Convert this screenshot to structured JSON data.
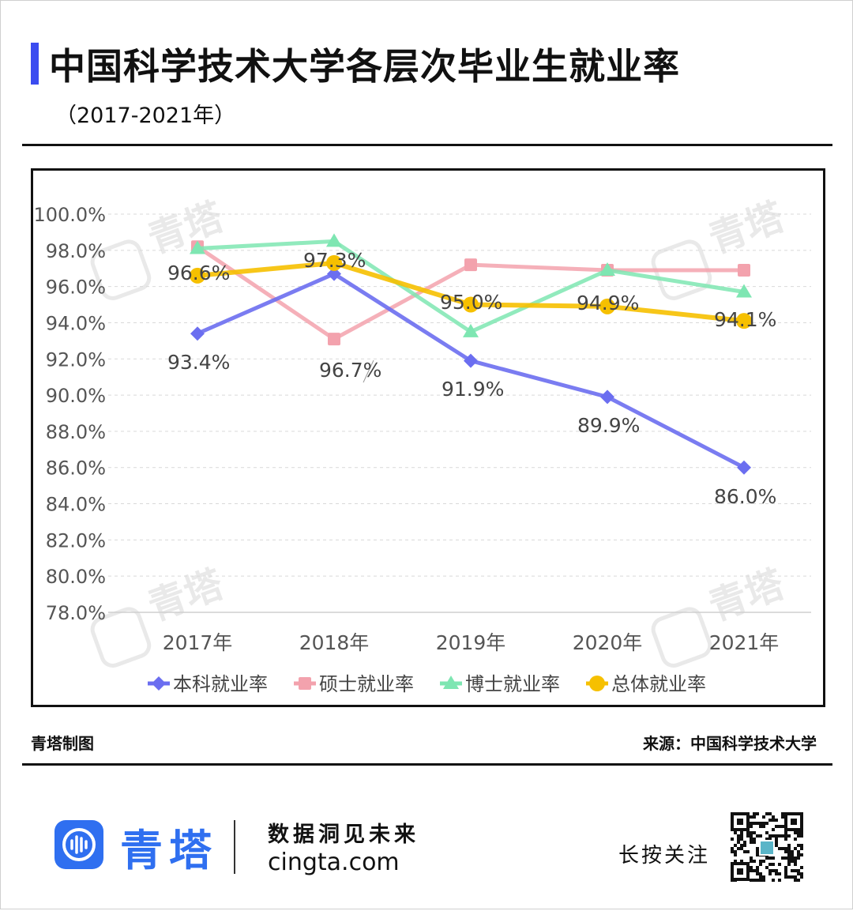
{
  "header": {
    "title": "中国科学技术大学各层次毕业生就业率",
    "subtitle": "（2017-2021年）"
  },
  "watermark": {
    "text": "青塔",
    "icon": "qingta-logo-icon"
  },
  "chart_data": {
    "type": "line",
    "categories": [
      "2017年",
      "2018年",
      "2019年",
      "2020年",
      "2021年"
    ],
    "y_ticks": [
      "100.0%",
      "98.0%",
      "96.0%",
      "94.0%",
      "92.0%",
      "90.0%",
      "88.0%",
      "86.0%",
      "84.0%",
      "82.0%",
      "80.0%",
      "78.0%"
    ],
    "ylim": [
      78,
      100
    ],
    "grid": true,
    "legend_position": "bottom",
    "series": [
      {
        "name": "本科就业率",
        "values": [
          93.4,
          96.7,
          91.9,
          89.9,
          86.0
        ],
        "labels": [
          "93.4%",
          "96.7%",
          "91.9%",
          "89.9%",
          "86.0%"
        ],
        "color": "#6b6ef0",
        "marker": "diamond"
      },
      {
        "name": "硕士就业率",
        "values": [
          98.2,
          93.1,
          97.2,
          96.9,
          96.9
        ],
        "labels": [],
        "color": "#f3a2ad",
        "marker": "square"
      },
      {
        "name": "博士就业率",
        "values": [
          98.1,
          98.5,
          93.5,
          96.9,
          95.7
        ],
        "labels": [],
        "color": "#7ee6b2",
        "marker": "triangle"
      },
      {
        "name": "总体就业率",
        "values": [
          96.6,
          97.3,
          95.0,
          94.9,
          94.1
        ],
        "labels": [
          "96.6%",
          "97.3%",
          "95.0%",
          "94.9%",
          "94.1%"
        ],
        "color": "#f6c000",
        "marker": "circle"
      }
    ]
  },
  "footer": {
    "left": "青塔制图",
    "right": "来源：中国科学技术大学"
  },
  "brand": {
    "name": "青塔",
    "slogan": "数据洞见未来",
    "site": "cingta.com",
    "follow": "长按关注",
    "qr_icon": "qr-code-icon"
  }
}
